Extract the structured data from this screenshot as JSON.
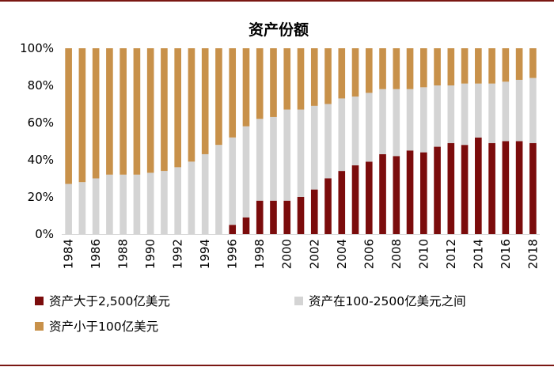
{
  "chart_data": {
    "type": "bar",
    "stacked": true,
    "title": "资产份额",
    "xlabel": "",
    "ylabel": "",
    "ylim": [
      0,
      100
    ],
    "y_ticks": [
      "0%",
      "20%",
      "40%",
      "60%",
      "80%",
      "100%"
    ],
    "categories": [
      "1984",
      "1985",
      "1986",
      "1987",
      "1988",
      "1989",
      "1990",
      "1991",
      "1992",
      "1993",
      "1994",
      "1995",
      "1996",
      "1997",
      "1998",
      "1999",
      "2000",
      "2001",
      "2002",
      "2003",
      "2004",
      "2005",
      "2006",
      "2007",
      "2008",
      "2009",
      "2010",
      "2011",
      "2012",
      "2013",
      "2014",
      "2015",
      "2016",
      "2017",
      "2018"
    ],
    "x_tick_labels": [
      "1984",
      "",
      "1986",
      "",
      "1988",
      "",
      "1990",
      "",
      "1992",
      "",
      "1994",
      "",
      "1996",
      "",
      "1998",
      "",
      "2000",
      "",
      "2002",
      "",
      "2004",
      "",
      "2006",
      "",
      "2008",
      "",
      "2010",
      "",
      "2012",
      "",
      "2014",
      "",
      "2016",
      "",
      "2018"
    ],
    "legend_position": "bottom",
    "series": [
      {
        "name": "资产大于2,500亿美元",
        "color": "#7b0c0c",
        "values": [
          0,
          0,
          0,
          0,
          0,
          0,
          0,
          0,
          0,
          0,
          0,
          0,
          5,
          9,
          18,
          18,
          18,
          20,
          24,
          30,
          34,
          37,
          39,
          43,
          42,
          45,
          44,
          47,
          49,
          48,
          52,
          49,
          50,
          50,
          49
        ]
      },
      {
        "name": "资产在100-2500亿美元之间",
        "color": "#d4d4d4",
        "values": [
          27,
          28,
          30,
          32,
          32,
          32,
          33,
          34,
          36,
          39,
          43,
          48,
          47,
          49,
          44,
          45,
          49,
          47,
          45,
          40,
          39,
          37,
          37,
          35,
          36,
          33,
          35,
          33,
          31,
          33,
          29,
          32,
          32,
          33,
          35
        ]
      },
      {
        "name": "资产小于100亿美元",
        "color": "#c8914a",
        "values": [
          73,
          72,
          70,
          68,
          68,
          68,
          67,
          66,
          64,
          61,
          57,
          52,
          48,
          42,
          38,
          37,
          33,
          33,
          31,
          30,
          27,
          26,
          24,
          22,
          22,
          22,
          21,
          20,
          20,
          19,
          19,
          19,
          18,
          17,
          16
        ]
      }
    ]
  }
}
